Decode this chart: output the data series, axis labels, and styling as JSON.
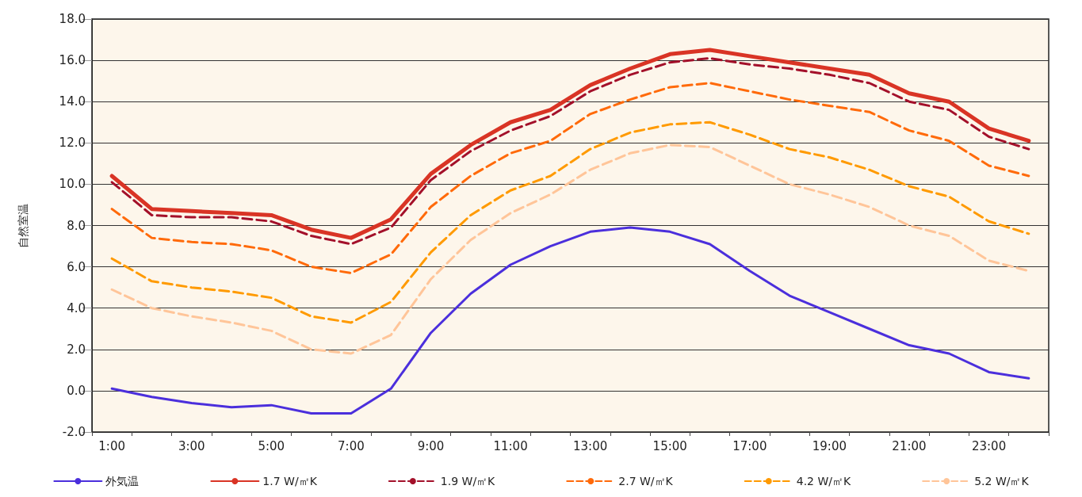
{
  "chart_data": {
    "type": "line",
    "ylabel": "自然室温",
    "categories": [
      "1:00",
      null,
      "3:00",
      null,
      "5:00",
      null,
      "7:00",
      null,
      "9:00",
      null,
      "11:00",
      null,
      "13:00",
      null,
      "15:00",
      null,
      "17:00",
      null,
      "19:00",
      null,
      "21:00",
      null,
      "23:00",
      null
    ],
    "ylim": [
      -2,
      18
    ],
    "yticks": [
      {
        "value": -2,
        "label": "-2.0"
      },
      {
        "value": 0,
        "label": "0.0"
      },
      {
        "value": 2,
        "label": "2.0"
      },
      {
        "value": 4,
        "label": "4.0"
      },
      {
        "value": 6,
        "label": "6.0"
      },
      {
        "value": 8,
        "label": "8.0"
      },
      {
        "value": 10,
        "label": "10.0"
      },
      {
        "value": 12,
        "label": "12.0"
      },
      {
        "value": 14,
        "label": "14.0"
      },
      {
        "value": 16,
        "label": "16.0"
      },
      {
        "value": 18,
        "label": "18.0"
      }
    ],
    "grid": "y",
    "legend": "bottom",
    "marker": "none",
    "series": [
      {
        "name": "外気温",
        "color": "#4b2fdc",
        "line_style": "solid",
        "values": [
          0.1,
          -0.3,
          -0.6,
          -0.8,
          -0.7,
          -1.1,
          -1.1,
          0.1,
          2.8,
          4.7,
          6.1,
          7.0,
          7.7,
          7.9,
          7.7,
          7.1,
          5.8,
          4.6,
          3.8,
          3.0,
          2.2,
          1.8,
          0.9,
          0.6
        ]
      },
      {
        "name": "1.7 W/㎡K",
        "color": "#d93425",
        "line_style": "solid",
        "values": [
          10.4,
          8.8,
          8.7,
          8.6,
          8.5,
          7.8,
          7.4,
          8.3,
          10.5,
          11.9,
          13.0,
          13.6,
          14.8,
          15.6,
          16.3,
          16.5,
          16.2,
          15.9,
          15.6,
          15.3,
          14.4,
          14.0,
          12.7,
          12.1
        ]
      },
      {
        "name": "1.9 W/㎡K",
        "color": "#a3102a",
        "line_style": "dashed",
        "values": [
          10.1,
          8.5,
          8.4,
          8.4,
          8.2,
          7.5,
          7.1,
          7.9,
          10.2,
          11.6,
          12.6,
          13.3,
          14.5,
          15.3,
          15.9,
          16.1,
          15.8,
          15.6,
          15.3,
          14.9,
          14.0,
          13.6,
          12.3,
          11.7
        ]
      },
      {
        "name": "2.7 W/㎡K",
        "color": "#ff6a0a",
        "line_style": "dashed",
        "values": [
          8.8,
          7.4,
          7.2,
          7.1,
          6.8,
          6.0,
          5.7,
          6.6,
          8.9,
          10.4,
          11.5,
          12.1,
          13.4,
          14.1,
          14.7,
          14.9,
          14.5,
          14.1,
          13.8,
          13.5,
          12.6,
          12.1,
          10.9,
          10.4
        ]
      },
      {
        "name": "4.2 W/㎡K",
        "color": "#ff9a00",
        "line_style": "dashed",
        "values": [
          6.4,
          5.3,
          5.0,
          4.8,
          4.5,
          3.6,
          3.3,
          4.3,
          6.7,
          8.5,
          9.7,
          10.4,
          11.7,
          12.5,
          12.9,
          13.0,
          12.4,
          11.7,
          11.3,
          10.7,
          9.9,
          9.4,
          8.2,
          7.6
        ]
      },
      {
        "name": "5.2 W/㎡K",
        "color": "#ffc599",
        "line_style": "dashed",
        "values": [
          4.9,
          4.0,
          3.6,
          3.3,
          2.9,
          2.0,
          1.8,
          2.7,
          5.4,
          7.3,
          8.6,
          9.5,
          10.7,
          11.5,
          11.9,
          11.8,
          10.9,
          10.0,
          9.5,
          8.9,
          8.0,
          7.5,
          6.3,
          5.8
        ]
      }
    ]
  }
}
